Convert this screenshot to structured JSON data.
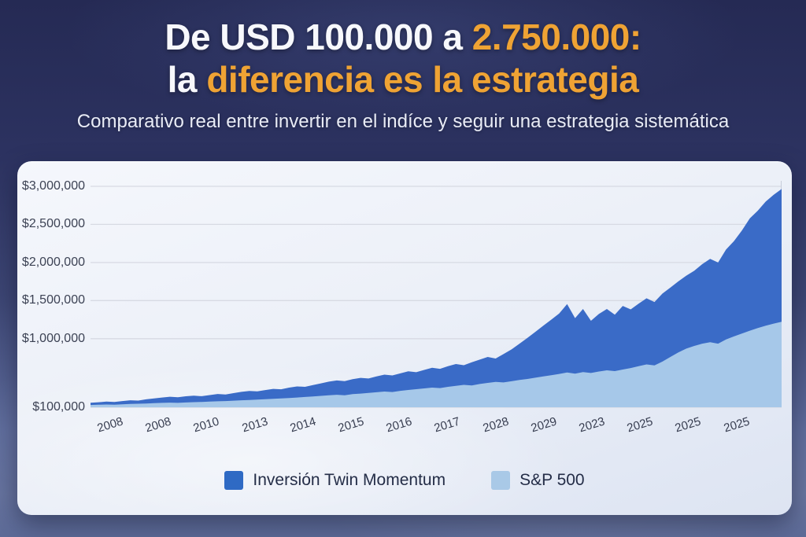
{
  "header": {
    "title_part1": "De USD 100.000 a ",
    "title_part2": "2.750.000:",
    "title_part3": "la ",
    "title_part4": "diferencia es la estrategia",
    "subtitle": "Comparativo real entre invertir en el indíce y seguir una estrategia sistemática",
    "accent_color": "#efa334",
    "title_color": "#f7f8fc"
  },
  "chart_data": {
    "type": "area",
    "title": "",
    "xlabel": "",
    "ylabel": "",
    "values_unit": "USD thousands",
    "ymin": 100,
    "ymax": 3000,
    "grid": "horizontal",
    "grid_color": "#d7dae3",
    "plot_border_color": "#c7cdda",
    "legend_position": "bottom",
    "y_ticks": [
      {
        "label": "$3,000,000",
        "value": 3000
      },
      {
        "label": "$2,500,000",
        "value": 2500
      },
      {
        "label": "$2,000,000",
        "value": 2000
      },
      {
        "label": "$1,500,000",
        "value": 1500
      },
      {
        "label": "$1,000,000",
        "value": 1000
      },
      {
        "label": "$100,000",
        "value": 100
      }
    ],
    "x_labels": [
      "2008",
      "2008",
      "2010",
      "2013",
      "2014",
      "2015",
      "2016",
      "2017",
      "2028",
      "2029",
      "2023",
      "2025",
      "2025",
      "2025"
    ],
    "series": [
      {
        "name": "Inversión Twin Momentum",
        "color": "#3a6bc7",
        "legend_color": "#2f6ac4",
        "values": [
          160,
          166,
          174,
          170,
          182,
          192,
          188,
          204,
          216,
          228,
          238,
          232,
          244,
          252,
          246,
          260,
          274,
          268,
          286,
          302,
          314,
          308,
          326,
          342,
          336,
          358,
          374,
          368,
          392,
          414,
          436,
          452,
          444,
          468,
          486,
          478,
          505,
          528,
          518,
          545,
          572,
          560,
          590,
          618,
          605,
          640,
          668,
          652,
          690,
          725,
          760,
          740,
          800,
          860,
          935,
          1010,
          1090,
          1170,
          1250,
          1330,
          1455,
          1270,
          1390,
          1235,
          1325,
          1390,
          1315,
          1430,
          1385,
          1460,
          1530,
          1482,
          1592,
          1672,
          1752,
          1828,
          1892,
          1978,
          2048,
          2000,
          2170,
          2280,
          2420,
          2580,
          2680,
          2800,
          2890,
          2965
        ]
      },
      {
        "name": "S&P 500",
        "color": "#a6c8e9",
        "legend_color": "#a9c9e7",
        "values": [
          130,
          133,
          136,
          134,
          139,
          143,
          146,
          150,
          154,
          158,
          161,
          158,
          163,
          167,
          170,
          174,
          178,
          182,
          187,
          192,
          196,
          200,
          205,
          210,
          216,
          222,
          228,
          235,
          242,
          250,
          257,
          264,
          258,
          272,
          280,
          288,
          297,
          306,
          300,
          316,
          327,
          337,
          348,
          358,
          352,
          368,
          382,
          394,
          386,
          405,
          420,
          432,
          426,
          442,
          458,
          472,
          488,
          505,
          520,
          538,
          556,
          542,
          562,
          550,
          570,
          585,
          575,
          595,
          615,
          640,
          662,
          650,
          700,
          760,
          820,
          870,
          905,
          935,
          955,
          935,
          990,
          1030,
          1068,
          1105,
          1140,
          1170,
          1198,
          1222
        ]
      }
    ]
  }
}
